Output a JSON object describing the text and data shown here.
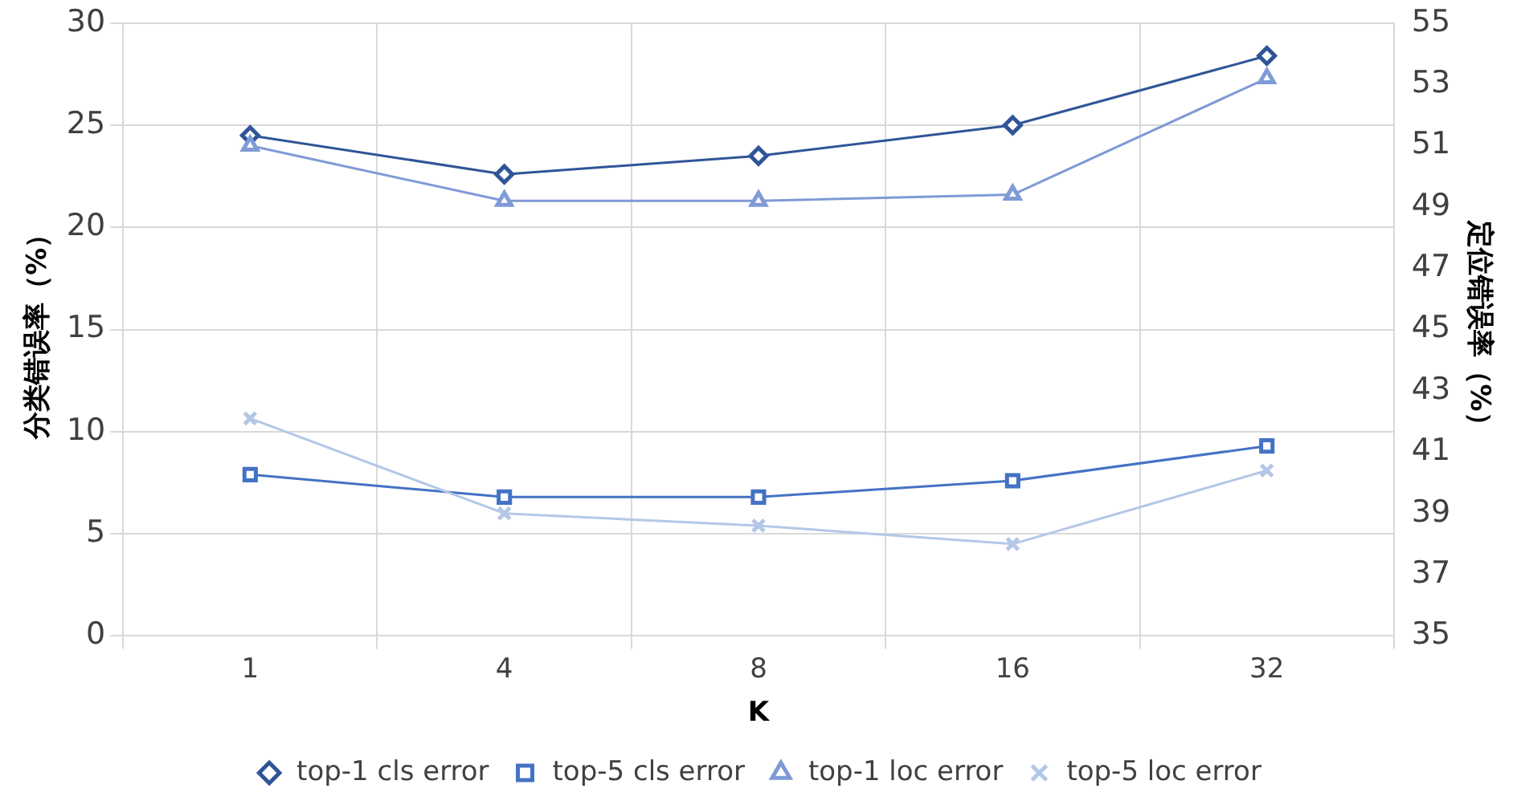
{
  "chart_data": {
    "type": "line",
    "xlabel": "K",
    "ylabel": "分类错误率（%）",
    "y2label": "定位错误率（%）",
    "categories": [
      "1",
      "4",
      "8",
      "16",
      "32"
    ],
    "series": [
      {
        "name": "top-1 cls error",
        "color": "#2f5597",
        "marker": "diamond",
        "values": [
          24.5,
          22.6,
          23.5,
          25.0,
          28.4
        ]
      },
      {
        "name": "top-5 cls error",
        "color": "#4472c4",
        "marker": "square",
        "values": [
          7.9,
          6.8,
          6.8,
          7.6,
          9.3
        ]
      },
      {
        "name": "top-1 loc error",
        "color": "#7f9ad6",
        "marker": "triangle",
        "axis": "y2",
        "values": [
          51.0,
          49.2,
          49.2,
          49.4,
          53.2
        ]
      },
      {
        "name": "top-5 loc error",
        "color": "#b4c7e7",
        "marker": "cross",
        "axis": "y2",
        "values": [
          42.1,
          39.0,
          38.6,
          38.0,
          40.4
        ]
      }
    ],
    "ylim": [
      0,
      30
    ],
    "yticks": [
      0,
      5,
      10,
      15,
      20,
      25,
      30
    ],
    "y2lim": [
      35,
      55
    ],
    "y2ticks": [
      35,
      37,
      39,
      41,
      43,
      45,
      47,
      49,
      51,
      53,
      55
    ],
    "grid": true,
    "legend": "bottom",
    "line_style": "solid"
  }
}
